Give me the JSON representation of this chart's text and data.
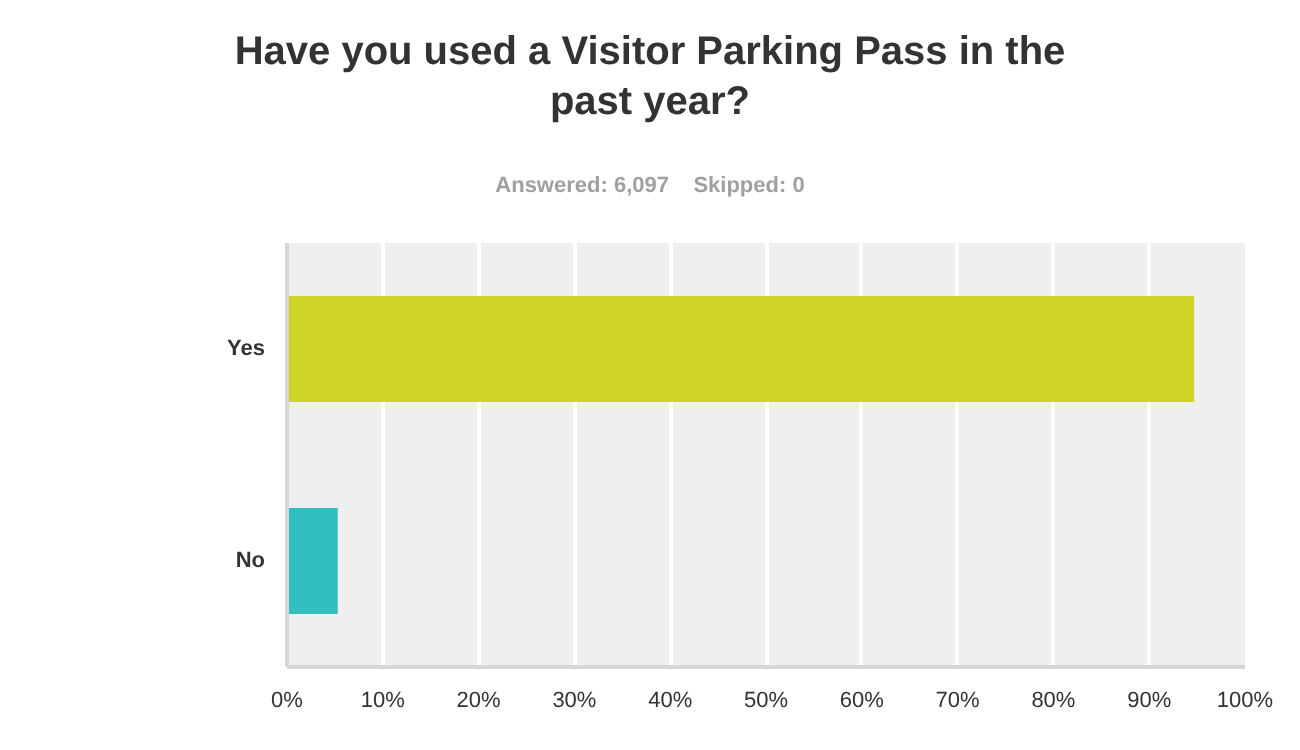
{
  "chart_data": {
    "type": "bar",
    "orientation": "horizontal",
    "title": "Have you used a Visitor Parking Pass in the\npast year?",
    "subtitle": "Answered: 6,097    Skipped: 0",
    "categories": [
      "Yes",
      "No"
    ],
    "values": [
      94.7,
      5.3
    ],
    "colors": [
      "#cfd527",
      "#33bfbf"
    ],
    "xlim": [
      0,
      100
    ],
    "xticks": [
      {
        "value": 0,
        "label": "0%"
      },
      {
        "value": 10,
        "label": "10%"
      },
      {
        "value": 20,
        "label": "20%"
      },
      {
        "value": 30,
        "label": "30%"
      },
      {
        "value": 40,
        "label": "40%"
      },
      {
        "value": 50,
        "label": "50%"
      },
      {
        "value": 60,
        "label": "60%"
      },
      {
        "value": 70,
        "label": "70%"
      },
      {
        "value": 80,
        "label": "80%"
      },
      {
        "value": 90,
        "label": "90%"
      },
      {
        "value": 100,
        "label": "100%"
      }
    ],
    "grid": "x"
  }
}
